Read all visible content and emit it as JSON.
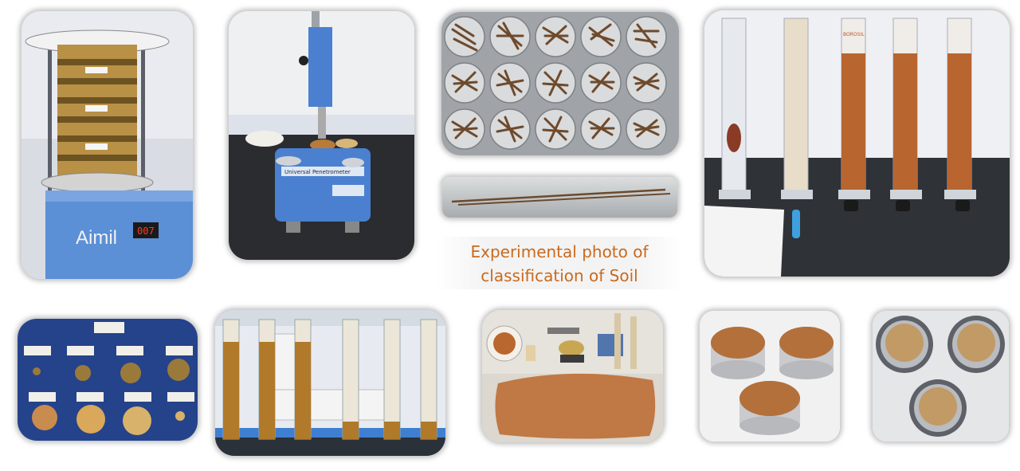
{
  "caption": {
    "line1": "Experimental photo of",
    "line2": "classification of Soil"
  },
  "sieve_shaker": {
    "brand": "Aimil",
    "display": "007"
  },
  "penetrometer": {
    "label": "Universal Penetrometer"
  },
  "cylinder_label": "BOROSIL",
  "colors": {
    "soil_brown": "#b8652f",
    "caption_orange": "#c96a1e",
    "lab_blue": "#3f74c4",
    "steel": "#b9bcc0"
  }
}
